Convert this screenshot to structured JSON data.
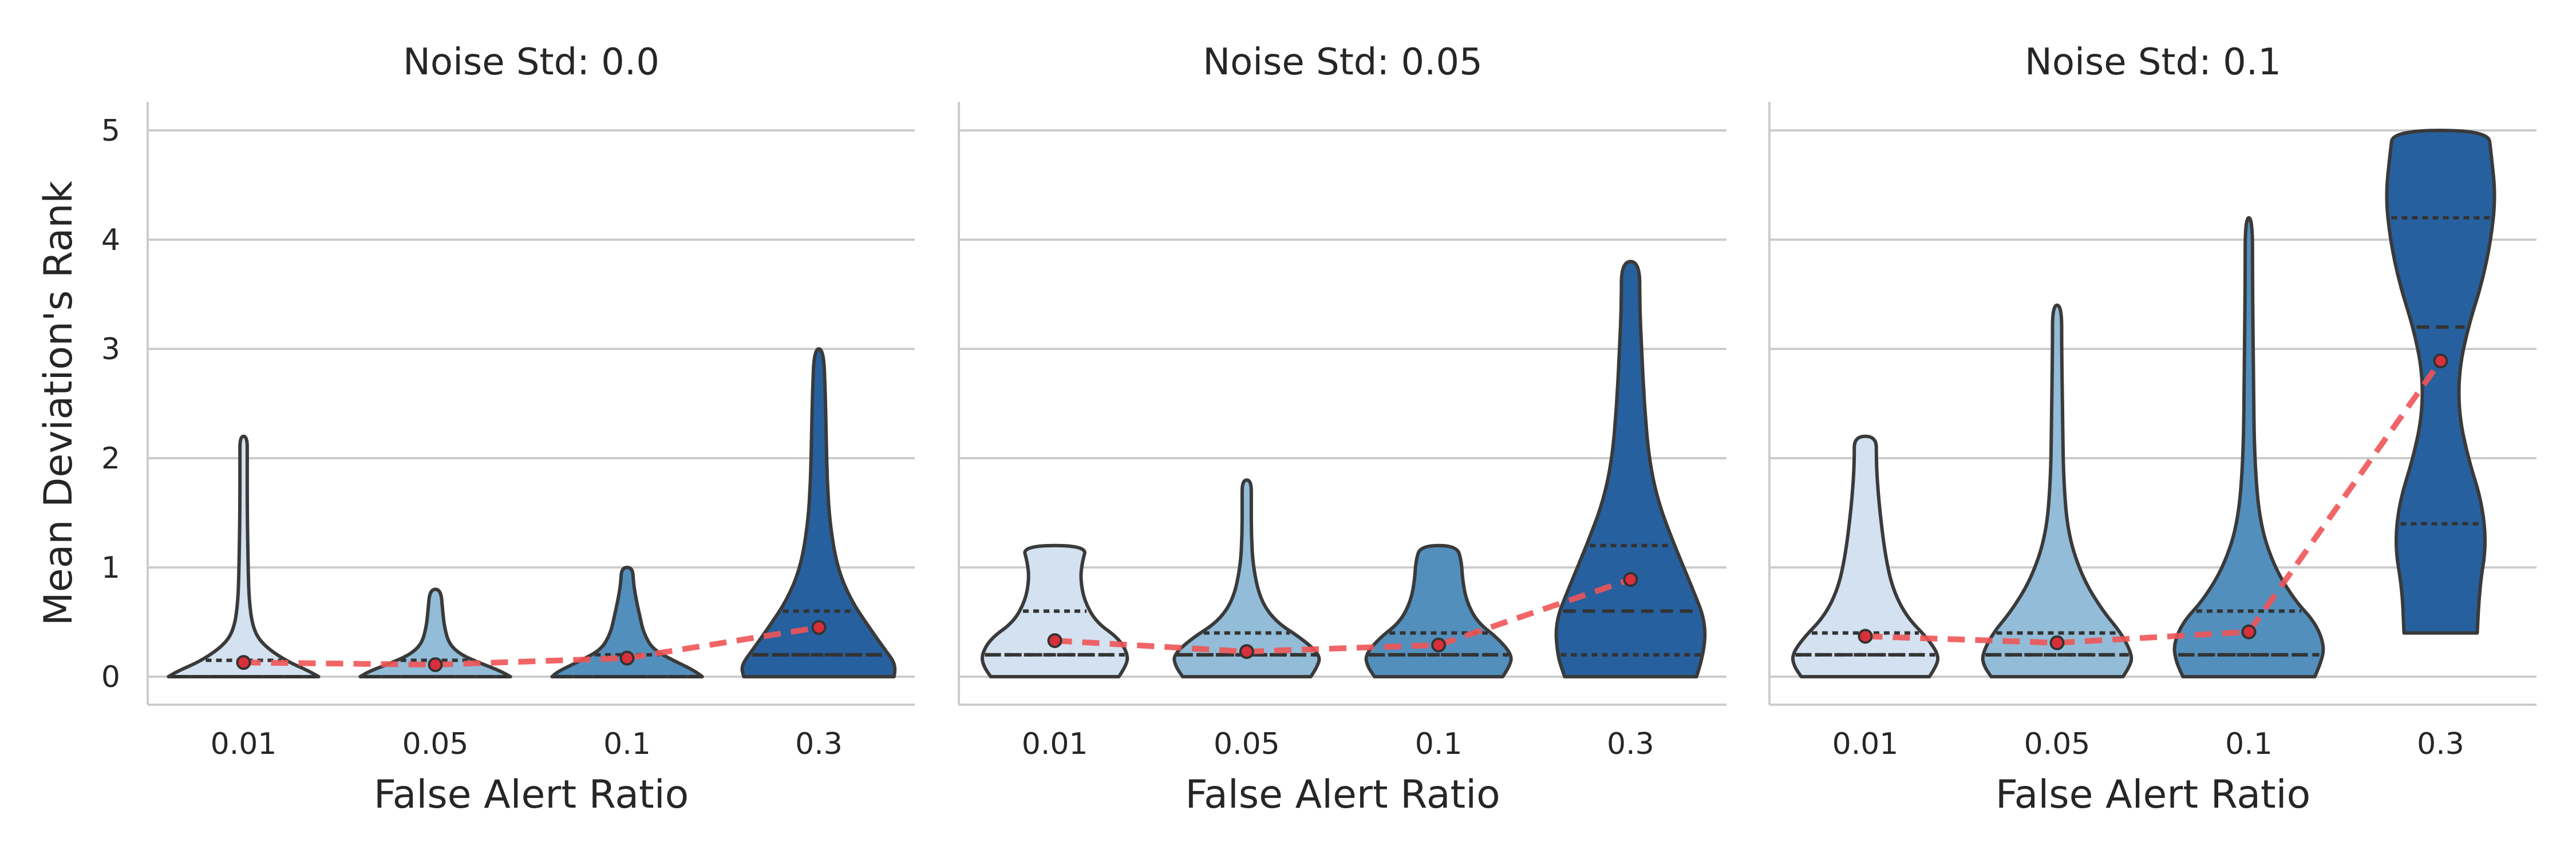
{
  "chart_data": {
    "type": "violin",
    "panels": [
      {
        "title": "Noise Std: 0.0",
        "categories": [
          "0.01",
          "0.05",
          "0.1",
          "0.3"
        ],
        "violins": [
          {
            "min": 0,
            "max": 2.2,
            "q1": 0.0,
            "median": 0.0,
            "q3": 0.15,
            "profile": [
              [
                0,
                0.82
              ],
              [
                0.05,
                0.72
              ],
              [
                0.15,
                0.45
              ],
              [
                0.3,
                0.2
              ],
              [
                0.45,
                0.1
              ],
              [
                0.7,
                0.06
              ],
              [
                1.0,
                0.05
              ],
              [
                1.5,
                0.04
              ],
              [
                2.0,
                0.04
              ],
              [
                2.2,
                0.04
              ]
            ]
          },
          {
            "min": 0,
            "max": 0.8,
            "q1": 0.0,
            "median": 0.0,
            "q3": 0.15,
            "profile": [
              [
                0,
                0.82
              ],
              [
                0.05,
                0.72
              ],
              [
                0.12,
                0.5
              ],
              [
                0.2,
                0.28
              ],
              [
                0.3,
                0.15
              ],
              [
                0.45,
                0.1
              ],
              [
                0.6,
                0.08
              ],
              [
                0.8,
                0.06
              ]
            ]
          },
          {
            "min": 0,
            "max": 1.0,
            "q1": 0.0,
            "median": 0.0,
            "q3": 0.2,
            "profile": [
              [
                0,
                0.82
              ],
              [
                0.05,
                0.75
              ],
              [
                0.15,
                0.5
              ],
              [
                0.25,
                0.28
              ],
              [
                0.4,
                0.18
              ],
              [
                0.55,
                0.14
              ],
              [
                0.7,
                0.1
              ],
              [
                0.85,
                0.07
              ],
              [
                1.0,
                0.06
              ]
            ]
          },
          {
            "min": 0,
            "max": 3.0,
            "q1": 0.2,
            "median": 0.2,
            "q3": 0.6,
            "profile": [
              [
                0,
                0.82
              ],
              [
                0.1,
                0.85
              ],
              [
                0.25,
                0.72
              ],
              [
                0.45,
                0.55
              ],
              [
                0.7,
                0.35
              ],
              [
                1.0,
                0.2
              ],
              [
                1.4,
                0.12
              ],
              [
                1.8,
                0.09
              ],
              [
                2.2,
                0.08
              ],
              [
                2.6,
                0.07
              ],
              [
                3.0,
                0.05
              ]
            ]
          }
        ],
        "mean_points": [
          0.13,
          0.11,
          0.17,
          0.45
        ]
      },
      {
        "title": "Noise Std: 0.05",
        "categories": [
          "0.01",
          "0.05",
          "0.1",
          "0.3"
        ],
        "violins": [
          {
            "min": 0,
            "max": 1.2,
            "q1": 0.2,
            "median": 0.2,
            "q3": 0.6,
            "profile": [
              [
                0,
                0.7
              ],
              [
                0.1,
                0.78
              ],
              [
                0.2,
                0.8
              ],
              [
                0.35,
                0.7
              ],
              [
                0.5,
                0.45
              ],
              [
                0.7,
                0.32
              ],
              [
                0.9,
                0.28
              ],
              [
                1.05,
                0.3
              ],
              [
                1.2,
                0.35
              ]
            ]
          },
          {
            "min": 0,
            "max": 1.8,
            "q1": 0.2,
            "median": 0.2,
            "q3": 0.4,
            "profile": [
              [
                0,
                0.7
              ],
              [
                0.1,
                0.78
              ],
              [
                0.2,
                0.8
              ],
              [
                0.35,
                0.6
              ],
              [
                0.5,
                0.32
              ],
              [
                0.7,
                0.15
              ],
              [
                1.0,
                0.07
              ],
              [
                1.3,
                0.05
              ],
              [
                1.6,
                0.05
              ],
              [
                1.8,
                0.05
              ]
            ]
          },
          {
            "min": 0,
            "max": 1.2,
            "q1": 0.2,
            "median": 0.2,
            "q3": 0.4,
            "profile": [
              [
                0,
                0.7
              ],
              [
                0.1,
                0.78
              ],
              [
                0.2,
                0.8
              ],
              [
                0.35,
                0.65
              ],
              [
                0.5,
                0.42
              ],
              [
                0.7,
                0.3
              ],
              [
                0.9,
                0.26
              ],
              [
                1.05,
                0.25
              ],
              [
                1.2,
                0.2
              ]
            ]
          },
          {
            "min": 0,
            "max": 3.8,
            "q1": 0.2,
            "median": 0.6,
            "q3": 1.2,
            "profile": [
              [
                0,
                0.72
              ],
              [
                0.2,
                0.8
              ],
              [
                0.5,
                0.82
              ],
              [
                0.8,
                0.68
              ],
              [
                1.2,
                0.48
              ],
              [
                1.6,
                0.3
              ],
              [
                2.0,
                0.2
              ],
              [
                2.5,
                0.15
              ],
              [
                3.0,
                0.12
              ],
              [
                3.4,
                0.1
              ],
              [
                3.8,
                0.1
              ]
            ]
          }
        ],
        "mean_points": [
          0.33,
          0.23,
          0.29,
          0.89
        ]
      },
      {
        "title": "Noise Std: 0.1",
        "categories": [
          "0.01",
          "0.05",
          "0.1",
          "0.3"
        ],
        "violins": [
          {
            "min": 0,
            "max": 2.2,
            "q1": 0.2,
            "median": 0.2,
            "q3": 0.4,
            "profile": [
              [
                0,
                0.7
              ],
              [
                0.1,
                0.78
              ],
              [
                0.2,
                0.8
              ],
              [
                0.35,
                0.68
              ],
              [
                0.55,
                0.45
              ],
              [
                0.8,
                0.3
              ],
              [
                1.1,
                0.22
              ],
              [
                1.5,
                0.16
              ],
              [
                1.8,
                0.13
              ],
              [
                2.0,
                0.12
              ],
              [
                2.2,
                0.12
              ]
            ]
          },
          {
            "min": 0,
            "max": 3.4,
            "q1": 0.2,
            "median": 0.2,
            "q3": 0.4,
            "profile": [
              [
                0,
                0.72
              ],
              [
                0.1,
                0.8
              ],
              [
                0.2,
                0.82
              ],
              [
                0.4,
                0.7
              ],
              [
                0.6,
                0.5
              ],
              [
                0.9,
                0.28
              ],
              [
                1.3,
                0.12
              ],
              [
                1.8,
                0.07
              ],
              [
                2.4,
                0.06
              ],
              [
                3.0,
                0.05
              ],
              [
                3.4,
                0.05
              ]
            ]
          },
          {
            "min": 0,
            "max": 4.2,
            "q1": 0.2,
            "median": 0.2,
            "q3": 0.6,
            "profile": [
              [
                0,
                0.72
              ],
              [
                0.15,
                0.8
              ],
              [
                0.3,
                0.82
              ],
              [
                0.5,
                0.72
              ],
              [
                0.7,
                0.5
              ],
              [
                1.0,
                0.28
              ],
              [
                1.4,
                0.12
              ],
              [
                2.0,
                0.06
              ],
              [
                2.8,
                0.05
              ],
              [
                3.6,
                0.04
              ],
              [
                4.2,
                0.04
              ]
            ]
          },
          {
            "min": 0.4,
            "max": 5.0,
            "q1": 1.4,
            "median": 3.2,
            "q3": 4.2,
            "profile": [
              [
                0.4,
                0.4
              ],
              [
                0.8,
                0.42
              ],
              [
                1.2,
                0.5
              ],
              [
                1.6,
                0.45
              ],
              [
                2.0,
                0.3
              ],
              [
                2.4,
                0.2
              ],
              [
                2.8,
                0.2
              ],
              [
                3.2,
                0.3
              ],
              [
                3.6,
                0.45
              ],
              [
                4.0,
                0.55
              ],
              [
                4.4,
                0.6
              ],
              [
                4.8,
                0.55
              ],
              [
                5.0,
                0.52
              ]
            ]
          }
        ],
        "mean_points": [
          0.37,
          0.31,
          0.41,
          2.89
        ]
      }
    ],
    "xlabel": "False Alert Ratio",
    "ylabel": "Mean Deviation's Rank",
    "yticks": [
      0,
      1,
      2,
      3,
      4,
      5
    ],
    "ylim": [
      -0.25,
      5.25
    ],
    "colors": [
      "#d3e1f0",
      "#92bcd7",
      "#528fbd",
      "#27609e"
    ],
    "mean_line_color": "#ef5456",
    "grid": true
  }
}
